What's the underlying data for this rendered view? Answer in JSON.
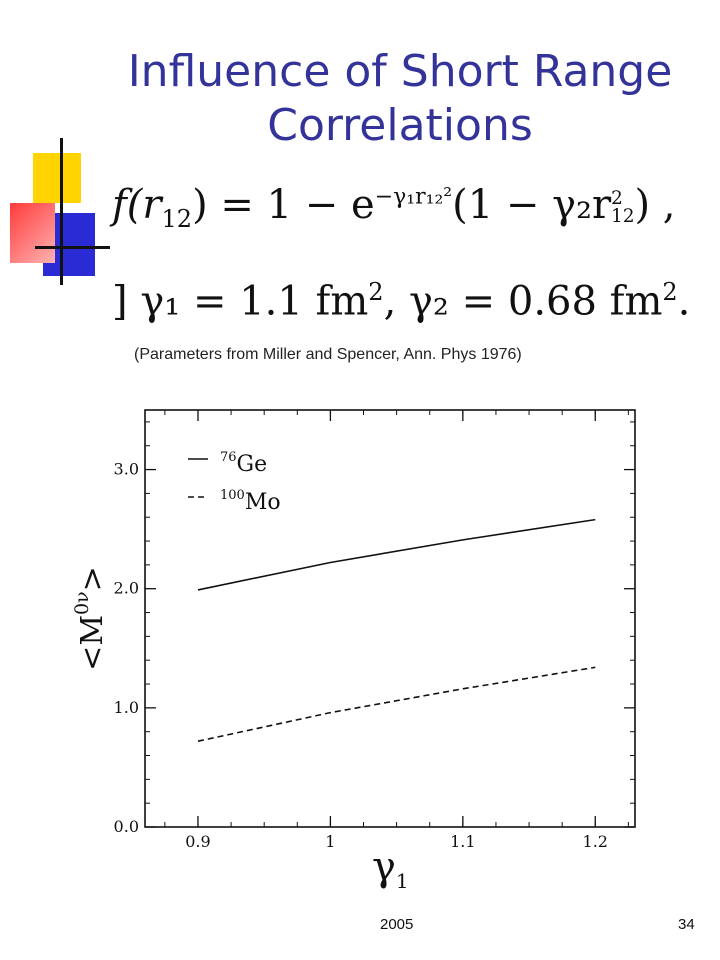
{
  "slide": {
    "title": "Influence of Short Range Correlations",
    "caption": "(Parameters from Miller and Spencer, Ann. Phys 1976)",
    "footer_date": "2005",
    "page_number": "34",
    "title_color": "#333399"
  },
  "formula": {
    "line1_lhs": "f(r",
    "line1_sub": "12",
    "line1_eq": ") = 1 − e",
    "line1_exp": "−γ₁r₁₂²",
    "line1_rest": "(1 − γ₂r",
    "line1_sub2": "12",
    "line1_sup2": "2",
    "line1_end": ") ,",
    "line2_lead": "]",
    "line2_g1": "γ₁ = 1.1 fm",
    "line2_sup1": "2",
    "line2_g2": ", γ₂ = 0.68 fm",
    "line2_sup2": "2",
    "line2_end": "."
  },
  "chart_data": {
    "type": "line",
    "x": [
      0.9,
      1.0,
      1.1,
      1.2
    ],
    "series": [
      {
        "name": "76Ge",
        "legend_mass": "76",
        "legend_element": "Ge",
        "style": "solid",
        "values": [
          1.99,
          2.22,
          2.41,
          2.58
        ]
      },
      {
        "name": "100Mo",
        "legend_mass": "100",
        "legend_element": "Mo",
        "style": "dashed",
        "values": [
          0.72,
          0.96,
          1.16,
          1.34
        ]
      }
    ],
    "xlim": [
      0.86,
      1.23
    ],
    "ylim": [
      0.0,
      3.5
    ],
    "xticks": [
      "0.9",
      "1",
      "1.1",
      "1.2"
    ],
    "yticks": [
      "0.0",
      "1.0",
      "2.0",
      "3.0"
    ],
    "xlabel": "γ",
    "xlabel_sub": "1",
    "ylabel": "<M",
    "ylabel_sup": "0ν",
    "ylabel_end": ">",
    "legend_position": "top-left",
    "grid": false
  }
}
